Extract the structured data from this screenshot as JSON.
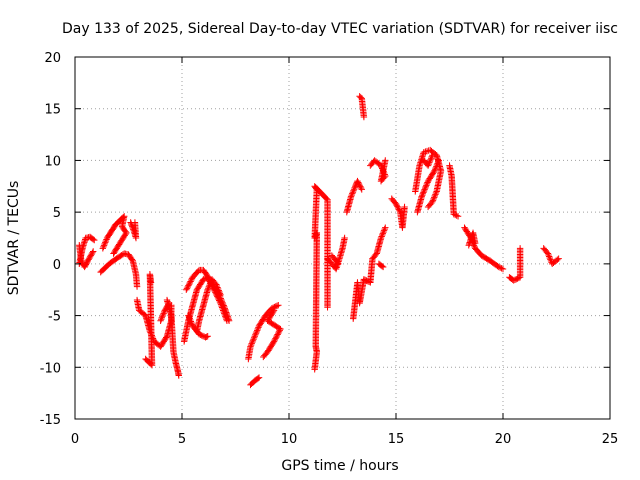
{
  "chart_data": {
    "type": "scatter",
    "title": "Day 133 of 2025, Sidereal Day-to-day VTEC variation (SDTVAR) for receiver iisc",
    "xlabel": "GPS time / hours",
    "ylabel": "SDTVAR / TECUs",
    "xlim": [
      0,
      25
    ],
    "ylim": [
      -15,
      20
    ],
    "xticks": [
      0,
      5,
      10,
      15,
      20,
      25
    ],
    "yticks": [
      -15,
      -10,
      -5,
      0,
      5,
      10,
      15,
      20
    ],
    "grid": true,
    "marker": "+",
    "color": "#ff0000",
    "segments": [
      [
        [
          0.2,
          0.0
        ],
        [
          0.35,
          1.5
        ],
        [
          0.5,
          2.5
        ],
        [
          0.7,
          2.6
        ],
        [
          0.9,
          2.3
        ]
      ],
      [
        [
          0.2,
          1.8
        ],
        [
          0.3,
          0.2
        ],
        [
          0.45,
          -0.3
        ],
        [
          0.6,
          0.3
        ],
        [
          0.85,
          1.2
        ]
      ],
      [
        [
          1.2,
          -0.8
        ],
        [
          1.6,
          0.0
        ],
        [
          2.0,
          0.6
        ],
        [
          2.3,
          1.0
        ],
        [
          2.5,
          0.9
        ],
        [
          2.7,
          0.3
        ],
        [
          2.85,
          -1.0
        ],
        [
          2.9,
          -2.2
        ]
      ],
      [
        [
          1.3,
          1.5
        ],
        [
          1.5,
          2.5
        ],
        [
          1.9,
          3.8
        ],
        [
          2.3,
          4.6
        ],
        [
          2.2,
          3.6
        ],
        [
          2.4,
          3.0
        ],
        [
          1.8,
          1.0
        ]
      ],
      [
        [
          2.6,
          4.0
        ],
        [
          2.75,
          3.2
        ],
        [
          2.85,
          2.5
        ],
        [
          2.8,
          4.0
        ]
      ],
      [
        [
          2.9,
          -3.5
        ],
        [
          3.0,
          -4.5
        ],
        [
          3.3,
          -5.0
        ],
        [
          3.5,
          -6.5
        ],
        [
          3.7,
          -7.5
        ],
        [
          4.0,
          -8.0
        ],
        [
          4.3,
          -7.0
        ],
        [
          4.5,
          -5.5
        ],
        [
          4.5,
          -4.0
        ]
      ],
      [
        [
          3.3,
          -9.2
        ],
        [
          3.6,
          -9.8
        ],
        [
          3.5,
          -1.0
        ],
        [
          3.55,
          -1.8
        ]
      ],
      [
        [
          4.3,
          -3.5
        ],
        [
          4.5,
          -5.0
        ],
        [
          4.6,
          -8.5
        ],
        [
          4.7,
          -9.5
        ],
        [
          4.8,
          -10.3
        ],
        [
          4.85,
          -10.8
        ]
      ],
      [
        [
          4.0,
          -5.5
        ],
        [
          4.2,
          -4.5
        ],
        [
          4.4,
          -3.8
        ]
      ],
      [
        [
          5.2,
          -2.5
        ],
        [
          5.5,
          -1.3
        ],
        [
          5.8,
          -0.6
        ],
        [
          6.0,
          -0.6
        ],
        [
          6.2,
          -1.2
        ],
        [
          6.4,
          -2.0
        ],
        [
          6.7,
          -2.8
        ],
        [
          7.0,
          -4.3
        ],
        [
          7.2,
          -5.5
        ]
      ],
      [
        [
          5.1,
          -7.5
        ],
        [
          5.3,
          -5.5
        ],
        [
          5.5,
          -4.0
        ],
        [
          5.7,
          -2.5
        ],
        [
          6.0,
          -1.5
        ],
        [
          6.2,
          -1.3
        ],
        [
          6.5,
          -2.5
        ],
        [
          6.8,
          -3.8
        ],
        [
          7.1,
          -5.5
        ]
      ],
      [
        [
          5.3,
          -5.0
        ],
        [
          5.5,
          -6.0
        ],
        [
          5.8,
          -6.8
        ],
        [
          6.1,
          -7.1
        ],
        [
          6.2,
          -7.0
        ]
      ],
      [
        [
          5.7,
          -6.5
        ],
        [
          5.8,
          -5.5
        ],
        [
          6.0,
          -4.0
        ],
        [
          6.2,
          -2.5
        ],
        [
          6.4,
          -1.5
        ],
        [
          6.6,
          -2.0
        ],
        [
          6.8,
          -3.0
        ]
      ],
      [
        [
          8.1,
          -9.2
        ],
        [
          8.2,
          -8.0
        ],
        [
          8.4,
          -7.0
        ],
        [
          8.6,
          -6.0
        ],
        [
          8.9,
          -5.0
        ],
        [
          9.2,
          -4.3
        ],
        [
          9.5,
          -4.0
        ]
      ],
      [
        [
          8.2,
          -11.7
        ],
        [
          8.4,
          -11.3
        ],
        [
          8.6,
          -11.0
        ]
      ],
      [
        [
          8.8,
          -9.0
        ],
        [
          9.0,
          -8.5
        ],
        [
          9.3,
          -7.5
        ],
        [
          9.6,
          -6.3
        ],
        [
          9.0,
          -5.5
        ],
        [
          9.3,
          -4.5
        ]
      ],
      [
        [
          11.2,
          -10.2
        ],
        [
          11.3,
          -8.5
        ],
        [
          11.25,
          -8.0
        ],
        [
          11.3,
          3.0
        ],
        [
          11.2,
          2.5
        ],
        [
          11.3,
          7.2
        ],
        [
          11.2,
          7.5
        ],
        [
          11.8,
          6.2
        ],
        [
          11.8,
          -4.2
        ]
      ],
      [
        [
          11.8,
          0.5
        ],
        [
          12.0,
          0.0
        ],
        [
          12.2,
          -0.5
        ],
        [
          12.4,
          0.8
        ],
        [
          12.5,
          1.5
        ],
        [
          12.6,
          2.5
        ]
      ],
      [
        [
          12.0,
          0.8
        ],
        [
          12.2,
          0.3
        ],
        [
          12.3,
          0.0
        ]
      ],
      [
        [
          12.7,
          5.0
        ],
        [
          12.9,
          6.5
        ],
        [
          13.1,
          7.5
        ],
        [
          13.2,
          8.0
        ],
        [
          13.4,
          7.2
        ]
      ],
      [
        [
          13.0,
          -5.3
        ],
        [
          13.2,
          -1.8
        ],
        [
          13.3,
          -3.8
        ],
        [
          13.5,
          -1.5
        ],
        [
          13.8,
          -1.8
        ],
        [
          13.9,
          0.5
        ],
        [
          14.1,
          1.0
        ],
        [
          14.3,
          2.5
        ],
        [
          14.5,
          3.5
        ]
      ],
      [
        [
          13.3,
          16.2
        ],
        [
          13.4,
          16.0
        ],
        [
          13.5,
          14.2
        ]
      ],
      [
        [
          13.8,
          9.5
        ],
        [
          14.0,
          10.0
        ],
        [
          14.3,
          9.5
        ],
        [
          14.5,
          8.5
        ],
        [
          14.3,
          8.0
        ],
        [
          14.5,
          10.0
        ]
      ],
      [
        [
          14.2,
          0.0
        ],
        [
          14.4,
          -0.3
        ]
      ],
      [
        [
          14.8,
          6.3
        ],
        [
          15.0,
          5.8
        ],
        [
          15.2,
          5.0
        ],
        [
          15.3,
          3.5
        ],
        [
          15.4,
          5.5
        ]
      ],
      [
        [
          15.9,
          7.0
        ],
        [
          16.1,
          9.5
        ],
        [
          16.3,
          10.8
        ],
        [
          16.6,
          11.0
        ],
        [
          16.9,
          10.5
        ],
        [
          17.1,
          9.0
        ],
        [
          16.9,
          7.0
        ],
        [
          16.7,
          6.0
        ],
        [
          16.5,
          5.5
        ]
      ],
      [
        [
          16.0,
          5.0
        ],
        [
          16.2,
          6.5
        ],
        [
          16.5,
          8.0
        ],
        [
          16.8,
          9.0
        ],
        [
          17.0,
          10.0
        ]
      ],
      [
        [
          16.3,
          10.0
        ],
        [
          16.5,
          9.5
        ],
        [
          16.7,
          10.5
        ]
      ],
      [
        [
          17.5,
          9.5
        ],
        [
          17.6,
          8.5
        ],
        [
          17.7,
          4.8
        ],
        [
          17.9,
          4.6
        ]
      ],
      [
        [
          18.2,
          3.5
        ],
        [
          18.5,
          2.5
        ],
        [
          18.7,
          1.5
        ],
        [
          19.0,
          0.8
        ],
        [
          19.4,
          0.3
        ],
        [
          19.8,
          -0.3
        ],
        [
          20.0,
          -0.5
        ]
      ],
      [
        [
          18.4,
          1.8
        ],
        [
          18.6,
          3.0
        ],
        [
          18.7,
          2.0
        ]
      ],
      [
        [
          20.3,
          -1.3
        ],
        [
          20.5,
          -1.6
        ],
        [
          20.8,
          -1.3
        ],
        [
          20.8,
          1.5
        ]
      ],
      [
        [
          21.9,
          1.5
        ],
        [
          22.1,
          1.0
        ],
        [
          22.3,
          0.0
        ],
        [
          22.6,
          0.5
        ]
      ]
    ]
  }
}
